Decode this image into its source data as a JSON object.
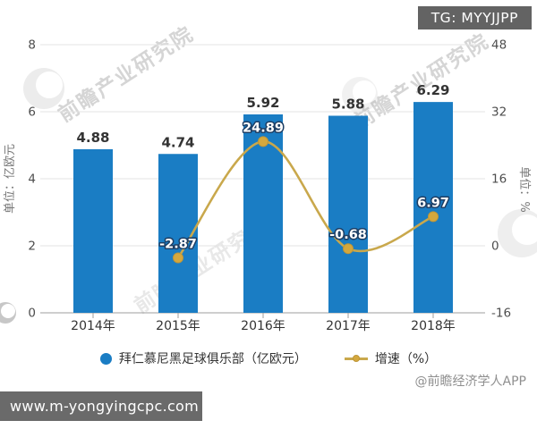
{
  "badge": {
    "text": "TG: MYYJJPP"
  },
  "watermark": {
    "text": "前瞻产业研究院"
  },
  "attribution": "@前瞻经济学人APP",
  "footer": {
    "url": "www.m-yongyingcpc.com"
  },
  "chart_data": {
    "type": "bar+line",
    "categories": [
      "2014年",
      "2015年",
      "2016年",
      "2017年",
      "2018年"
    ],
    "series": [
      {
        "name": "拜仁慕尼黑足球俱乐部（亿欧元）",
        "type": "bar",
        "axis": "left",
        "values": [
          4.88,
          4.74,
          5.92,
          5.88,
          6.29
        ],
        "color": "#1A7DC4"
      },
      {
        "name": "增速（%）",
        "type": "line",
        "axis": "right",
        "values": [
          null,
          -2.87,
          24.89,
          -0.68,
          6.97
        ],
        "color": "#C9A84C",
        "marker_color": "#D4A83E",
        "label_outline": "#1D3E64"
      }
    ],
    "left_axis": {
      "title": "单位：亿欧元",
      "min": 0,
      "max": 8,
      "ticks": [
        0,
        2,
        4,
        6,
        8
      ]
    },
    "right_axis": {
      "title": "单位：%",
      "min": -16,
      "max": 48,
      "ticks": [
        -16,
        0,
        16,
        32,
        48
      ]
    },
    "grid": true,
    "legend_position": "bottom",
    "colors": {
      "grid": "#E3E3E3",
      "axis": "#9C9C9C"
    }
  }
}
